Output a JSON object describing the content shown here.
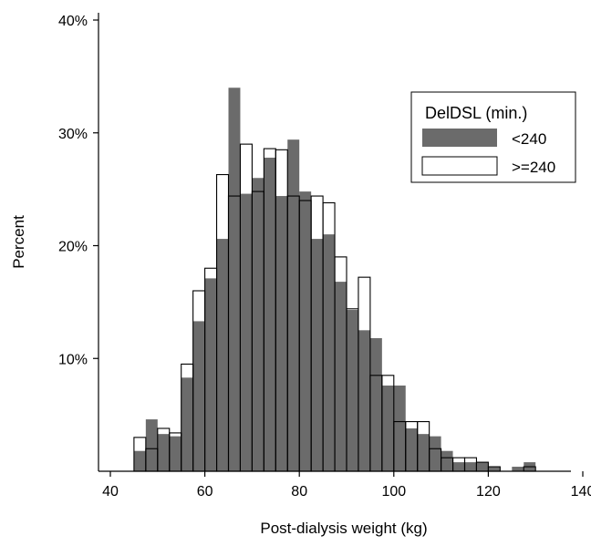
{
  "chart_data": {
    "type": "bar",
    "subtype": "overlaid-histogram",
    "title": "",
    "xlabel": "Post-dialysis weight (kg)",
    "ylabel": "Percent",
    "xlim": [
      40,
      140
    ],
    "ylim": [
      0,
      40
    ],
    "x_ticks": [
      40,
      60,
      80,
      100,
      120,
      140
    ],
    "y_ticks": [
      10,
      20,
      30,
      40
    ],
    "y_tick_labels": [
      "10%",
      "20%",
      "30%",
      "40%"
    ],
    "bin_width": 2.5,
    "grid": false,
    "legend": {
      "title": "DelDSL (min.)",
      "placement": "top-right",
      "entries": [
        "<240",
        ">=240"
      ]
    },
    "series": [
      {
        "name": "<240",
        "style": "filled",
        "color": "#6b6b6b",
        "bins": [
          {
            "x0": 45.0,
            "value": 1.8
          },
          {
            "x0": 47.5,
            "value": 4.6
          },
          {
            "x0": 50.0,
            "value": 3.3
          },
          {
            "x0": 52.5,
            "value": 3.1
          },
          {
            "x0": 55.0,
            "value": 8.3
          },
          {
            "x0": 57.5,
            "value": 13.3
          },
          {
            "x0": 60.0,
            "value": 17.1
          },
          {
            "x0": 62.5,
            "value": 20.6
          },
          {
            "x0": 65.0,
            "value": 34.0
          },
          {
            "x0": 67.5,
            "value": 24.6
          },
          {
            "x0": 70.0,
            "value": 26.0
          },
          {
            "x0": 72.5,
            "value": 27.8
          },
          {
            "x0": 75.0,
            "value": 24.4
          },
          {
            "x0": 77.5,
            "value": 29.4
          },
          {
            "x0": 80.0,
            "value": 24.8
          },
          {
            "x0": 82.5,
            "value": 20.6
          },
          {
            "x0": 85.0,
            "value": 21.0
          },
          {
            "x0": 87.5,
            "value": 16.8
          },
          {
            "x0": 90.0,
            "value": 14.3
          },
          {
            "x0": 92.5,
            "value": 12.5
          },
          {
            "x0": 95.0,
            "value": 11.8
          },
          {
            "x0": 97.5,
            "value": 7.6
          },
          {
            "x0": 100.0,
            "value": 7.6
          },
          {
            "x0": 102.5,
            "value": 3.8
          },
          {
            "x0": 105.0,
            "value": 3.3
          },
          {
            "x0": 107.5,
            "value": 3.1
          },
          {
            "x0": 110.0,
            "value": 1.8
          },
          {
            "x0": 112.5,
            "value": 0.8
          },
          {
            "x0": 115.0,
            "value": 0.8
          },
          {
            "x0": 117.5,
            "value": 0.8
          },
          {
            "x0": 120.0,
            "value": 0.4
          },
          {
            "x0": 125.0,
            "value": 0.4
          },
          {
            "x0": 127.5,
            "value": 0.8
          }
        ]
      },
      {
        "name": ">=240",
        "style": "outline",
        "color": "#000000",
        "bins": [
          {
            "x0": 45.0,
            "value": 3.0
          },
          {
            "x0": 47.5,
            "value": 2.0
          },
          {
            "x0": 50.0,
            "value": 3.8
          },
          {
            "x0": 52.5,
            "value": 3.4
          },
          {
            "x0": 55.0,
            "value": 9.5
          },
          {
            "x0": 57.5,
            "value": 16.0
          },
          {
            "x0": 60.0,
            "value": 18.0
          },
          {
            "x0": 62.5,
            "value": 26.3
          },
          {
            "x0": 65.0,
            "value": 24.4
          },
          {
            "x0": 67.5,
            "value": 29.0
          },
          {
            "x0": 70.0,
            "value": 24.8
          },
          {
            "x0": 72.5,
            "value": 28.6
          },
          {
            "x0": 75.0,
            "value": 28.5
          },
          {
            "x0": 77.5,
            "value": 24.4
          },
          {
            "x0": 80.0,
            "value": 24.0
          },
          {
            "x0": 82.5,
            "value": 24.4
          },
          {
            "x0": 85.0,
            "value": 23.8
          },
          {
            "x0": 87.5,
            "value": 19.0
          },
          {
            "x0": 90.0,
            "value": 14.4
          },
          {
            "x0": 92.5,
            "value": 17.2
          },
          {
            "x0": 95.0,
            "value": 8.5
          },
          {
            "x0": 97.5,
            "value": 8.5
          },
          {
            "x0": 100.0,
            "value": 4.4
          },
          {
            "x0": 102.5,
            "value": 4.4
          },
          {
            "x0": 105.0,
            "value": 4.4
          },
          {
            "x0": 107.5,
            "value": 2.0
          },
          {
            "x0": 110.0,
            "value": 1.2
          },
          {
            "x0": 112.5,
            "value": 1.2
          },
          {
            "x0": 115.0,
            "value": 1.2
          },
          {
            "x0": 117.5,
            "value": 0.8
          },
          {
            "x0": 120.0,
            "value": 0.4
          },
          {
            "x0": 127.5,
            "value": 0.4
          }
        ]
      }
    ]
  }
}
